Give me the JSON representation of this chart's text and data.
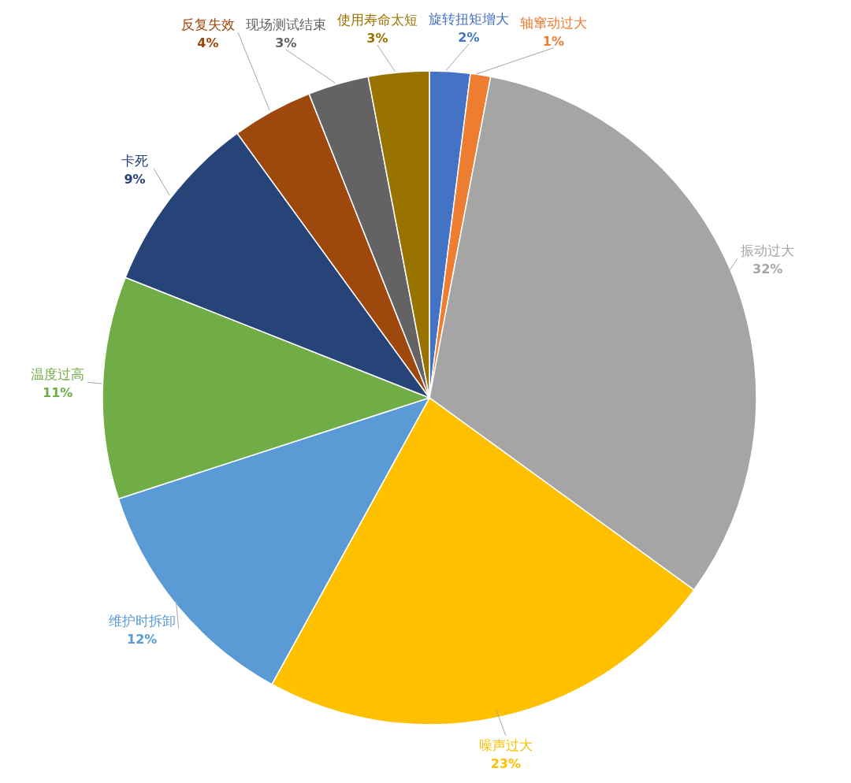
{
  "chart_data": {
    "type": "pie",
    "categories": [
      "旋转扭矩增大",
      "轴窜动过大",
      "振动过大",
      "噪声过大",
      "维护时拆卸",
      "温度过高",
      "卡死",
      "反复失效",
      "现场测试结束",
      "使用寿命太短"
    ],
    "values": [
      2,
      1,
      32,
      23,
      12,
      11,
      9,
      4,
      3,
      3
    ],
    "colors": [
      "#4472c4",
      "#ed7d31",
      "#a5a5a5",
      "#ffc000",
      "#5b9bd5",
      "#70ad47",
      "#264478",
      "#9e480e",
      "#636363",
      "#997300"
    ],
    "value_labels": [
      "2%",
      "1%",
      "32%",
      "23%",
      "12%",
      "11%",
      "9%",
      "4%",
      "3%",
      "3%"
    ]
  }
}
